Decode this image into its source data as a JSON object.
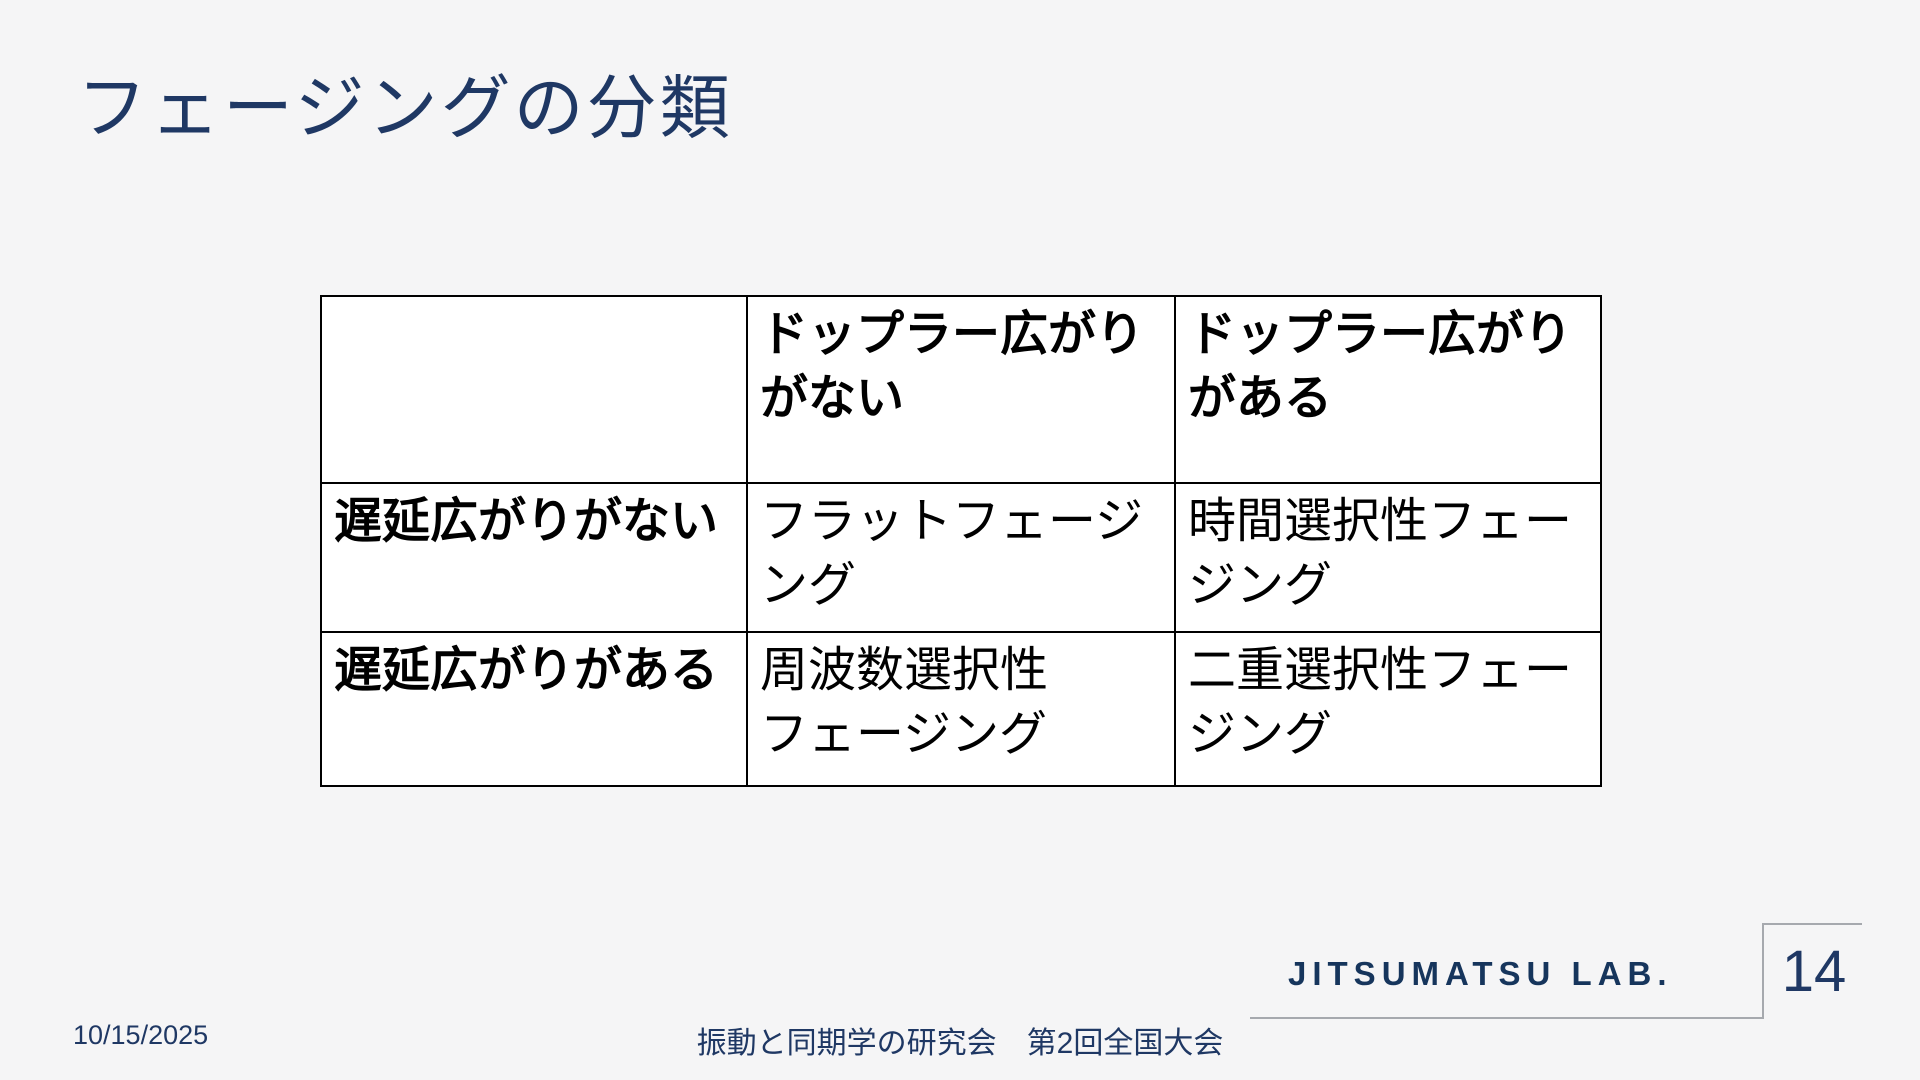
{
  "slide": {
    "title": "フェージングの分類",
    "table": {
      "corner": "",
      "col_headers": [
        "ドップラー広がり\nがない",
        "ドップラー広がり\nがある"
      ],
      "rows": [
        {
          "label": "遅延広がりがない",
          "cells": [
            "フラットフェージ\nング",
            "時間選択性フェー\nジング"
          ]
        },
        {
          "label": "遅延広がりがある",
          "cells": [
            "周波数選択性\nフェージング",
            "二重選択性フェー\nジング"
          ]
        }
      ]
    },
    "footer": {
      "date": "10/15/2025",
      "event_name": "振動と同期学の研究会　第2回全国大会",
      "logo_text": "JITSUMATSU LAB.",
      "page_number": "14"
    },
    "colors": {
      "background": "#f5f5f6",
      "title_text": "#1f3864",
      "footer_text": "#1f3864",
      "logo_text": "#16355c",
      "page_number_text": "#1f3864",
      "table_border": "#000000",
      "table_cell_bg": "#ffffff",
      "frame_line": "#a6a9ae"
    }
  }
}
